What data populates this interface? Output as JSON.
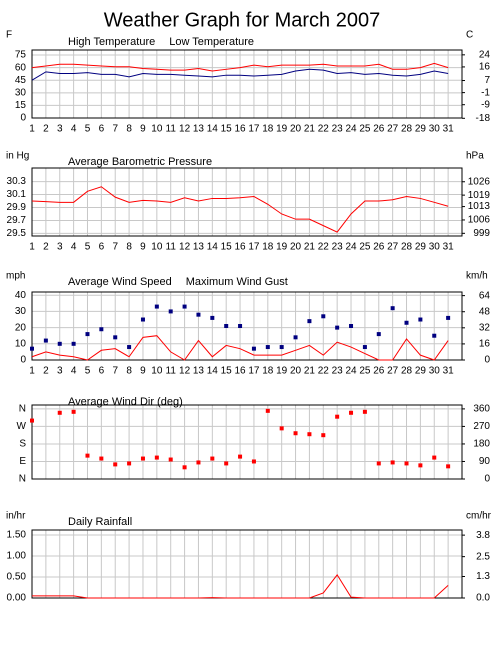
{
  "title": "Weather Graph for March 2007",
  "chart_data": [
    {
      "type": "line",
      "ylabel": "F",
      "y2label": "C",
      "x": [
        1,
        2,
        3,
        4,
        5,
        6,
        7,
        8,
        9,
        10,
        11,
        12,
        13,
        14,
        15,
        16,
        17,
        18,
        19,
        20,
        21,
        22,
        23,
        24,
        25,
        26,
        27,
        28,
        29,
        30,
        31
      ],
      "xlim": [
        1,
        32
      ],
      "xticks": [
        1,
        2,
        3,
        4,
        5,
        6,
        7,
        8,
        9,
        10,
        11,
        12,
        13,
        14,
        15,
        16,
        17,
        18,
        19,
        20,
        21,
        22,
        23,
        24,
        25,
        26,
        27,
        28,
        29,
        30,
        31
      ],
      "xtick_labels": true,
      "ylim": [
        0,
        81
      ],
      "yticks": [
        75,
        60,
        45,
        30,
        15,
        0
      ],
      "y2lim": [
        -17.8,
        27.2
      ],
      "y2ticks": [
        24,
        16,
        7,
        -1,
        -9,
        -18
      ],
      "grid": true,
      "series": [
        {
          "name": "High Temperature",
          "color": "#ff0000",
          "style": "line",
          "values": [
            60,
            62,
            64,
            64,
            63,
            62,
            61,
            61,
            59,
            58,
            57,
            57,
            59,
            56,
            58,
            60,
            63,
            61,
            63,
            63,
            63,
            64,
            62,
            62,
            62,
            64,
            58,
            58,
            60,
            65,
            60
          ]
        },
        {
          "name": "Low Temperature",
          "color": "#000080",
          "style": "line",
          "values": [
            45,
            55,
            53,
            53,
            54,
            52,
            52,
            49,
            53,
            52,
            52,
            51,
            50,
            49,
            51,
            51,
            50,
            51,
            52,
            56,
            58,
            57,
            53,
            54,
            52,
            53,
            51,
            50,
            52,
            56,
            53
          ]
        }
      ]
    },
    {
      "type": "line",
      "ylabel": "in Hg",
      "y2label": "hPa",
      "x": [
        1,
        2,
        3,
        4,
        5,
        6,
        7,
        8,
        9,
        10,
        11,
        12,
        13,
        14,
        15,
        16,
        17,
        18,
        19,
        20,
        21,
        22,
        23,
        24,
        25,
        26,
        27,
        28,
        29,
        30,
        31
      ],
      "xlim": [
        1,
        32
      ],
      "xticks": [
        1,
        2,
        3,
        4,
        5,
        6,
        7,
        8,
        9,
        10,
        11,
        12,
        13,
        14,
        15,
        16,
        17,
        18,
        19,
        20,
        21,
        22,
        23,
        24,
        25,
        26,
        27,
        28,
        29,
        30,
        31
      ],
      "xtick_labels": true,
      "ylim": [
        29.46,
        30.51
      ],
      "yticks": [
        30.3,
        30.1,
        29.9,
        29.7,
        29.5
      ],
      "y2lim": [
        997.6,
        1033.2
      ],
      "y2ticks": [
        1026,
        1019,
        1013,
        1006,
        999
      ],
      "grid": true,
      "series": [
        {
          "name": "Average Barometric Pressure",
          "color": "#ff0000",
          "style": "line",
          "values": [
            30.0,
            29.99,
            29.98,
            29.98,
            30.15,
            30.22,
            30.06,
            29.98,
            30.01,
            30.0,
            29.98,
            30.05,
            30.0,
            30.04,
            30.04,
            30.05,
            30.07,
            29.95,
            29.8,
            29.72,
            29.72,
            29.62,
            29.52,
            29.8,
            30.0,
            30.0,
            30.02,
            30.07,
            30.04,
            29.98,
            29.92
          ]
        }
      ]
    },
    {
      "type": "line",
      "ylabel": "mph",
      "y2label": "km/h",
      "x": [
        1,
        2,
        3,
        4,
        5,
        6,
        7,
        8,
        9,
        10,
        11,
        12,
        13,
        14,
        15,
        16,
        17,
        18,
        19,
        20,
        21,
        22,
        23,
        24,
        25,
        26,
        27,
        28,
        29,
        30,
        31
      ],
      "xlim": [
        1,
        32
      ],
      "xticks": [
        1,
        2,
        3,
        4,
        5,
        6,
        7,
        8,
        9,
        10,
        11,
        12,
        13,
        14,
        15,
        16,
        17,
        18,
        19,
        20,
        21,
        22,
        23,
        24,
        25,
        26,
        27,
        28,
        29,
        30,
        31
      ],
      "xtick_labels": true,
      "ylim": [
        0,
        42
      ],
      "yticks": [
        40,
        30,
        20,
        10,
        0
      ],
      "y2lim": [
        0,
        67.6
      ],
      "y2ticks": [
        64,
        48,
        32,
        16,
        0
      ],
      "grid": true,
      "series": [
        {
          "name": "Average Wind Speed",
          "color": "#ff0000",
          "style": "line",
          "values": [
            2,
            5,
            3,
            2,
            0,
            6,
            7,
            2,
            14,
            15,
            5,
            0,
            12,
            2,
            9,
            7,
            3,
            3,
            3,
            6,
            9,
            3,
            11,
            8,
            4,
            0,
            0,
            13,
            3,
            0,
            12
          ]
        },
        {
          "name": "Maximum Wind Gust",
          "color": "#000080",
          "style": "markers",
          "values": [
            7,
            12,
            10,
            10,
            16,
            19,
            14,
            8,
            25,
            33,
            30,
            33,
            28,
            26,
            21,
            21,
            7,
            8,
            8,
            14,
            24,
            27,
            20,
            21,
            8,
            16,
            32,
            23,
            25,
            15,
            26
          ]
        }
      ]
    },
    {
      "type": "line",
      "x": [
        1,
        2,
        3,
        4,
        5,
        6,
        7,
        8,
        9,
        10,
        11,
        12,
        13,
        14,
        15,
        16,
        17,
        18,
        19,
        20,
        21,
        22,
        23,
        24,
        25,
        26,
        27,
        28,
        29,
        30,
        31
      ],
      "xlim": [
        1,
        32
      ],
      "xticks": [
        1,
        2,
        3,
        4,
        5,
        6,
        7,
        8,
        9,
        10,
        11,
        12,
        13,
        14,
        15,
        16,
        17,
        18,
        19,
        20,
        21,
        22,
        23,
        24,
        25,
        26,
        27,
        28,
        29,
        30,
        31
      ],
      "xtick_labels": false,
      "ylim": [
        0,
        380
      ],
      "yticks": [
        {
          "value": 360,
          "label": "N"
        },
        {
          "value": 270,
          "label": "W"
        },
        {
          "value": 180,
          "label": "S"
        },
        {
          "value": 90,
          "label": "E"
        },
        {
          "value": 0,
          "label": "N"
        }
      ],
      "ytick_color": "#ff0000",
      "y2lim": [
        0,
        380
      ],
      "y2ticks": [
        360,
        270,
        180,
        90,
        0
      ],
      "grid": true,
      "series": [
        {
          "name": "Average Wind Dir (deg)",
          "color": "#ff0000",
          "style": "markers",
          "values": [
            300,
            null,
            340,
            345,
            120,
            105,
            75,
            80,
            105,
            110,
            100,
            60,
            85,
            105,
            80,
            115,
            90,
            350,
            260,
            235,
            230,
            225,
            320,
            340,
            345,
            80,
            85,
            80,
            70,
            110,
            65
          ]
        }
      ]
    },
    {
      "type": "line",
      "ylabel": "in/hr",
      "y2label": "cm/hr",
      "x": [
        1,
        2,
        3,
        4,
        5,
        6,
        7,
        8,
        9,
        10,
        11,
        12,
        13,
        14,
        15,
        16,
        17,
        18,
        19,
        20,
        21,
        22,
        23,
        24,
        25,
        26,
        27,
        28,
        29,
        30,
        31
      ],
      "xlim": [
        1,
        32
      ],
      "xticks": [
        1,
        2,
        3,
        4,
        5,
        6,
        7,
        8,
        9,
        10,
        11,
        12,
        13,
        14,
        15,
        16,
        17,
        18,
        19,
        20,
        21,
        22,
        23,
        24,
        25,
        26,
        27,
        28,
        29,
        30,
        31
      ],
      "xtick_labels": false,
      "ylim": [
        0,
        1.62
      ],
      "yticks": [
        {
          "value": 1.5,
          "label": "1.50"
        },
        {
          "value": 1,
          "label": "1.00"
        },
        {
          "value": 0.5,
          "label": "0.50"
        },
        {
          "value": 0,
          "label": "0.00"
        }
      ],
      "y2lim": [
        0,
        4.11
      ],
      "y2ticks": [
        3.8,
        2.5,
        1.3,
        {
          "value": 0,
          "label": "0.0"
        }
      ],
      "grid": true,
      "series": [
        {
          "name": "Daily Rainfall",
          "color": "#ff0000",
          "style": "line",
          "values": [
            0.05,
            0.05,
            0.05,
            0.05,
            0,
            0,
            0,
            0,
            0,
            0,
            0,
            0,
            0,
            0.01,
            0,
            0,
            0,
            0,
            0,
            0,
            0,
            0.12,
            0.55,
            0.02,
            0,
            0,
            0,
            0,
            0,
            0,
            0.3
          ]
        }
      ]
    }
  ]
}
